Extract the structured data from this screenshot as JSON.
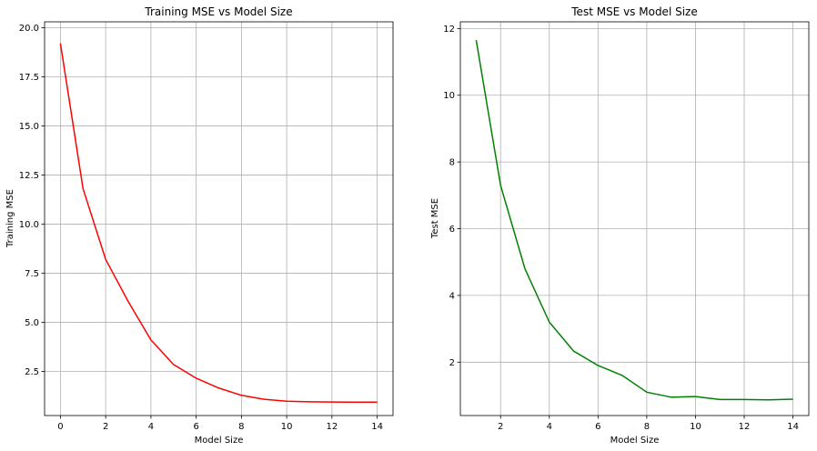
{
  "chart_data": [
    {
      "type": "line",
      "title": "Training MSE vs Model Size",
      "xlabel": "Model Size",
      "ylabel": "Training MSE",
      "xlim": [
        -0.7,
        14.7
      ],
      "ylim": [
        0.25,
        20.3
      ],
      "xticks": [
        0,
        2,
        4,
        6,
        8,
        10,
        12,
        14
      ],
      "yticks": [
        2.5,
        5.0,
        7.5,
        10.0,
        12.5,
        15.0,
        17.5,
        20.0
      ],
      "ytick_labels": [
        "2.5",
        "5.0",
        "7.5",
        "10.0",
        "12.5",
        "15.0",
        "17.5",
        "20.0"
      ],
      "grid": true,
      "color": "#ff0000",
      "series": [
        {
          "x": [
            0,
            1,
            2,
            3,
            4,
            5,
            6,
            7,
            8,
            9,
            10,
            11,
            12,
            13,
            14
          ],
          "values": [
            19.2,
            11.8,
            8.2,
            6.05,
            4.1,
            2.85,
            2.15,
            1.65,
            1.28,
            1.08,
            0.98,
            0.95,
            0.94,
            0.93,
            0.93
          ]
        }
      ]
    },
    {
      "type": "line",
      "title": "Test MSE vs Model Size",
      "xlabel": "Model Size",
      "ylabel": "Test MSE",
      "xlim": [
        0.35,
        14.65
      ],
      "ylim": [
        0.4,
        12.2
      ],
      "xticks": [
        2,
        4,
        6,
        8,
        10,
        12,
        14
      ],
      "yticks": [
        2,
        4,
        6,
        8,
        10,
        12
      ],
      "ytick_labels": [
        "2",
        "4",
        "6",
        "8",
        "10",
        "12"
      ],
      "grid": true,
      "color": "#008000",
      "series": [
        {
          "x": [
            1,
            2,
            3,
            4,
            5,
            6,
            7,
            8,
            9,
            10,
            11,
            12,
            13,
            14
          ],
          "values": [
            11.65,
            7.3,
            4.8,
            3.2,
            2.33,
            1.9,
            1.6,
            1.1,
            0.95,
            0.97,
            0.88,
            0.88,
            0.87,
            0.89
          ]
        }
      ]
    }
  ]
}
